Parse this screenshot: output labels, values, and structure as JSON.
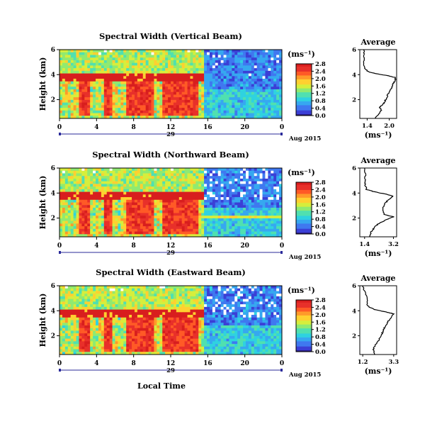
{
  "figure": {
    "xlabel": "Local Time",
    "date_label": "Aug 2015",
    "day_label": "29"
  },
  "colorbar_palette": [
    "#2a1a7a",
    "#3b3fd6",
    "#3f78f0",
    "#36a8f0",
    "#2fd2e0",
    "#50e0b0",
    "#90ea70",
    "#d6ee3c",
    "#ffd030",
    "#ff9a2a",
    "#ff5a26",
    "#e8302a",
    "#d81e1e"
  ],
  "chart_data": [
    {
      "type": "heatmap",
      "title": "Spectral Width (Vertical Beam)",
      "ylabel": "Height (km)",
      "xlabel": "Local Time",
      "x_range_hours": [
        0,
        24
      ],
      "x_ticks": [
        "0",
        "4",
        "8",
        "12",
        "16",
        "20",
        "0"
      ],
      "y_ticks": [
        "2",
        "4",
        "6"
      ],
      "ylim": [
        0.5,
        6
      ],
      "colorbar": {
        "unit": "(ms⁻¹)",
        "ticks": [
          "0.0",
          "0.4",
          "0.8",
          "1.2",
          "1.6",
          "2.0",
          "2.4",
          "2.8"
        ],
        "range": [
          0,
          2.8
        ]
      },
      "description_values": {
        "low_layer_width_before_16h": 1.6,
        "cloud_layer_4km_width": 2.8,
        "after_16h_upper": 0.4
      },
      "profile": {
        "title": "Average",
        "xlabel": "(ms⁻¹)",
        "x_ticks": [
          "1.4",
          "2.0"
        ],
        "xlim": [
          1.2,
          2.2
        ],
        "y_ticks": [
          "2",
          "4",
          "6"
        ],
        "ylim": [
          0.5,
          6
        ],
        "points": [
          [
            1.62,
            0.5
          ],
          [
            1.7,
            0.8
          ],
          [
            1.78,
            1.1
          ],
          [
            1.74,
            1.4
          ],
          [
            1.85,
            1.7
          ],
          [
            1.9,
            2.0
          ],
          [
            1.95,
            2.3
          ],
          [
            1.98,
            2.6
          ],
          [
            2.05,
            2.9
          ],
          [
            2.1,
            3.2
          ],
          [
            2.15,
            3.5
          ],
          [
            2.18,
            3.75
          ],
          [
            2.0,
            3.9
          ],
          [
            1.7,
            4.05
          ],
          [
            1.45,
            4.2
          ],
          [
            1.33,
            4.5
          ],
          [
            1.3,
            5.0
          ],
          [
            1.32,
            5.5
          ],
          [
            1.3,
            6.0
          ]
        ]
      }
    },
    {
      "type": "heatmap",
      "title": "Spectral Width (Northward Beam)",
      "ylabel": "Height (km)",
      "xlabel": "Local Time",
      "x_range_hours": [
        0,
        24
      ],
      "x_ticks": [
        "0",
        "4",
        "8",
        "12",
        "16",
        "20",
        "0"
      ],
      "y_ticks": [
        "2",
        "4",
        "6"
      ],
      "ylim": [
        0.5,
        6
      ],
      "colorbar": {
        "unit": "(ms⁻¹)",
        "ticks": [
          "0.0",
          "0.4",
          "0.8",
          "1.2",
          "1.6",
          "2.0",
          "2.4",
          "2.8"
        ],
        "range": [
          0,
          2.8
        ]
      },
      "description_values": {
        "low_layer_width_before_16h": 1.7,
        "cloud_layer_4km_width": 2.8,
        "after_16h_upper": 0.4
      },
      "profile": {
        "title": "Average",
        "xlabel": "(ms⁻¹)",
        "x_ticks": [
          "1.4",
          "3.2"
        ],
        "xlim": [
          1.1,
          3.4
        ],
        "y_ticks": [
          "2",
          "4",
          "6"
        ],
        "ylim": [
          0.5,
          6
        ],
        "points": [
          [
            1.7,
            0.5
          ],
          [
            1.8,
            0.9
          ],
          [
            2.0,
            1.2
          ],
          [
            2.2,
            1.5
          ],
          [
            2.8,
            1.9
          ],
          [
            3.2,
            2.1
          ],
          [
            2.6,
            2.3
          ],
          [
            2.5,
            2.8
          ],
          [
            2.7,
            3.2
          ],
          [
            2.9,
            3.5
          ],
          [
            3.2,
            3.75
          ],
          [
            2.8,
            3.9
          ],
          [
            2.0,
            4.1
          ],
          [
            1.5,
            4.3
          ],
          [
            1.4,
            4.8
          ],
          [
            1.45,
            5.3
          ],
          [
            1.4,
            6.0
          ]
        ]
      }
    },
    {
      "type": "heatmap",
      "title": "Spectral Width (Eastward Beam)",
      "ylabel": "Height (km)",
      "xlabel": "Local Time",
      "x_range_hours": [
        0,
        24
      ],
      "x_ticks": [
        "0",
        "4",
        "8",
        "12",
        "16",
        "20",
        "0"
      ],
      "y_ticks": [
        "2",
        "4",
        "6"
      ],
      "ylim": [
        0.5,
        6
      ],
      "colorbar": {
        "unit": "(ms⁻¹)",
        "ticks": [
          "0.0",
          "0.4",
          "0.8",
          "1.2",
          "1.6",
          "2.0",
          "2.4",
          "2.8"
        ],
        "range": [
          0,
          2.8
        ]
      },
      "description_values": {
        "low_layer_width_before_16h": 1.6,
        "cloud_layer_4km_width": 2.8,
        "after_16h_upper": 0.4
      },
      "profile": {
        "title": "Average",
        "xlabel": "(ms⁻¹)",
        "x_ticks": [
          "1.2",
          "3.3"
        ],
        "xlim": [
          1.0,
          3.5
        ],
        "y_ticks": [
          "2",
          "4",
          "6"
        ],
        "ylim": [
          0.5,
          6
        ],
        "points": [
          [
            2.0,
            0.5
          ],
          [
            1.9,
            0.9
          ],
          [
            2.1,
            1.3
          ],
          [
            2.3,
            1.7
          ],
          [
            2.5,
            2.1
          ],
          [
            2.6,
            2.5
          ],
          [
            2.8,
            2.9
          ],
          [
            3.0,
            3.3
          ],
          [
            3.3,
            3.75
          ],
          [
            2.8,
            3.9
          ],
          [
            2.0,
            4.1
          ],
          [
            1.5,
            4.4
          ],
          [
            1.5,
            5.0
          ],
          [
            1.3,
            5.6
          ],
          [
            1.2,
            6.0
          ]
        ]
      }
    }
  ]
}
